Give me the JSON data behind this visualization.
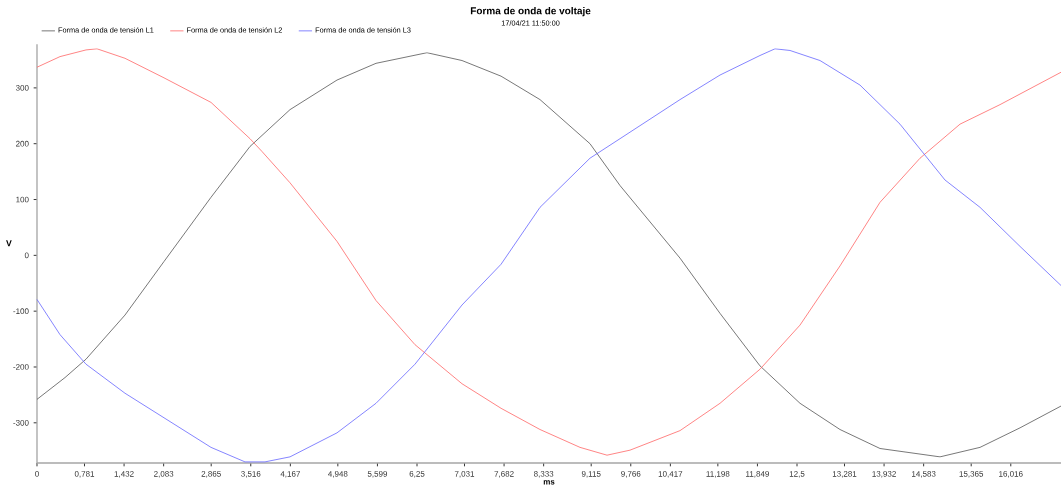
{
  "chart_data": {
    "type": "line",
    "title": "Forma de onda de voltaje",
    "subtitle": "17/04/21 11:50:00",
    "xlabel": "ms",
    "ylabel": "V",
    "xlim": [
      0,
      16.842
    ],
    "ylim": [
      -372,
      378
    ],
    "xticks": [
      0,
      {
        "value": 0.781,
        "label": "0,781"
      },
      {
        "value": 1.432,
        "label": "1,432"
      },
      {
        "value": 2.083,
        "label": "2,083"
      },
      {
        "value": 2.865,
        "label": "2,865"
      },
      {
        "value": 3.516,
        "label": "3,516"
      },
      {
        "value": 4.167,
        "label": "4,167"
      },
      {
        "value": 4.948,
        "label": "4,948"
      },
      {
        "value": 5.599,
        "label": "5,599"
      },
      {
        "value": 6.25,
        "label": "6,25"
      },
      {
        "value": 7.031,
        "label": "7,031"
      },
      {
        "value": 7.682,
        "label": "7,682"
      },
      {
        "value": 8.333,
        "label": "8,333"
      },
      {
        "value": 9.115,
        "label": "9,115"
      },
      {
        "value": 9.766,
        "label": "9,766"
      },
      {
        "value": 10.417,
        "label": "10,417"
      },
      {
        "value": 11.198,
        "label": "11,198"
      },
      {
        "value": 11.849,
        "label": "11,849"
      },
      {
        "value": 12.5,
        "label": "12,5"
      },
      {
        "value": 13.281,
        "label": "13,281"
      },
      {
        "value": 13.932,
        "label": "13,932"
      },
      {
        "value": 14.583,
        "label": "14,583"
      },
      {
        "value": 15.365,
        "label": "15,365"
      },
      {
        "value": 16.016,
        "label": "16,016"
      }
    ],
    "yticks": [
      -300,
      -200,
      -100,
      0,
      100,
      200,
      300
    ],
    "grid": false,
    "legend": "top left",
    "marker": "none",
    "line_style": "solid",
    "series": [
      {
        "name": "Forma de onda de tensión L1",
        "color": "#555555",
        "x": [
          0,
          0.46,
          0.806,
          1.447,
          2.089,
          2.862,
          3.503,
          4.161,
          4.934,
          5.576,
          6.414,
          6.99,
          7.632,
          8.273,
          9.095,
          9.589,
          10.576,
          11.234,
          11.891,
          12.549,
          13.207,
          13.865,
          14.852,
          15.51,
          16.168,
          16.842
        ],
        "values": [
          -258,
          -219,
          -186,
          -107,
          -11,
          104,
          195,
          261,
          314,
          344,
          363,
          349,
          321,
          279,
          200,
          125,
          -5,
          -104,
          -198,
          -265,
          -312,
          -346,
          -361,
          -344,
          -309,
          -270
        ]
      },
      {
        "name": "Forma de onda de tensión L2",
        "color": "#ff6666",
        "x": [
          0,
          0.378,
          0.806,
          0.987,
          1.447,
          2.089,
          2.862,
          3.503,
          3.701,
          4.161,
          4.934,
          5.576,
          6.217,
          6.99,
          7.632,
          8.273,
          8.931,
          9.375,
          9.753,
          10.576,
          11.234,
          11.891,
          12.549,
          13.207,
          13.865,
          14.523,
          15.181,
          15.839,
          16.842
        ],
        "values": [
          337,
          356,
          368,
          370,
          353,
          318,
          274,
          209,
          186,
          130,
          25,
          -81,
          -160,
          -230,
          -274,
          -312,
          -344,
          -358,
          -349,
          -314,
          -265,
          -204,
          -125,
          -19,
          95,
          174,
          235,
          270,
          328
        ]
      },
      {
        "name": "Forma de onda de tensión L3",
        "color": "#6666ff",
        "x": [
          0,
          0.378,
          0.806,
          1.447,
          2.089,
          2.862,
          3.421,
          3.75,
          4.161,
          4.934,
          5.576,
          6.217,
          6.99,
          7.632,
          8.273,
          9.095,
          9.589,
          10.576,
          11.234,
          11.891,
          12.138,
          12.385,
          12.878,
          13.536,
          14.194,
          14.934,
          15.51,
          16.168,
          16.842
        ],
        "values": [
          -79,
          -142,
          -195,
          -247,
          -291,
          -344,
          -370,
          -370,
          -361,
          -318,
          -265,
          -195,
          -89,
          -16,
          86,
          174,
          209,
          279,
          323,
          358,
          370,
          367,
          349,
          305,
          235,
          135,
          86,
          16,
          -54
        ]
      }
    ]
  }
}
